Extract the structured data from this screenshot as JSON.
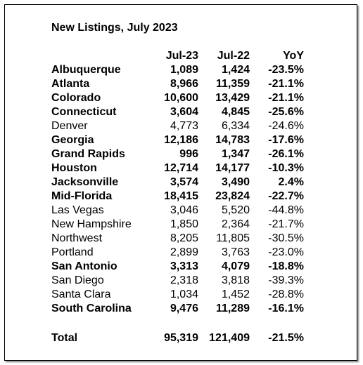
{
  "title": "New Listings, July 2023",
  "table": {
    "header": [
      "Jul-23",
      "Jul-22",
      "YoY"
    ],
    "rows": [
      {
        "cells": [
          "Albuquerque",
          "1,089",
          "1,424",
          "-23.5%"
        ],
        "bold": true
      },
      {
        "cells": [
          "Atlanta",
          "8,966",
          "11,359",
          "-21.1%"
        ],
        "bold": true
      },
      {
        "cells": [
          "Colorado",
          "10,600",
          "13,429",
          "-21.1%"
        ],
        "bold": true
      },
      {
        "cells": [
          "Connecticut",
          "3,604",
          "4,845",
          "-25.6%"
        ],
        "bold": true
      },
      {
        "cells": [
          "Denver",
          "4,773",
          "6,334",
          "-24.6%"
        ],
        "bold": false
      },
      {
        "cells": [
          "Georgia",
          "12,186",
          "14,783",
          "-17.6%"
        ],
        "bold": true
      },
      {
        "cells": [
          "Grand Rapids",
          "996",
          "1,347",
          "-26.1%"
        ],
        "bold": true
      },
      {
        "cells": [
          "Houston",
          "12,714",
          "14,177",
          "-10.3%"
        ],
        "bold": true
      },
      {
        "cells": [
          "Jacksonville",
          "3,574",
          "3,490",
          "2.4%"
        ],
        "bold": true
      },
      {
        "cells": [
          "Mid-Florida",
          "18,415",
          "23,824",
          "-22.7%"
        ],
        "bold": true
      },
      {
        "cells": [
          "Las Vegas",
          "3,046",
          "5,520",
          "-44.8%"
        ],
        "bold": false
      },
      {
        "cells": [
          "New Hampshire",
          "1,850",
          "2,364",
          "-21.7%"
        ],
        "bold": false
      },
      {
        "cells": [
          "Northwest",
          "8,205",
          "11,805",
          "-30.5%"
        ],
        "bold": false
      },
      {
        "cells": [
          "Portland",
          "2,899",
          "3,763",
          "-23.0%"
        ],
        "bold": false
      },
      {
        "cells": [
          "San Antonio",
          "3,313",
          "4,079",
          "-18.8%"
        ],
        "bold": true
      },
      {
        "cells": [
          "San Diego",
          "2,318",
          "3,818",
          "-39.3%"
        ],
        "bold": false
      },
      {
        "cells": [
          "Santa Clara",
          "1,034",
          "1,452",
          "-28.8%"
        ],
        "bold": false
      },
      {
        "cells": [
          "South Carolina",
          "9,476",
          "11,289",
          "-16.1%"
        ],
        "bold": true
      }
    ],
    "total": {
      "cells": [
        "Total",
        "95,319",
        "121,409",
        "-21.5%"
      ],
      "bold": true
    }
  }
}
